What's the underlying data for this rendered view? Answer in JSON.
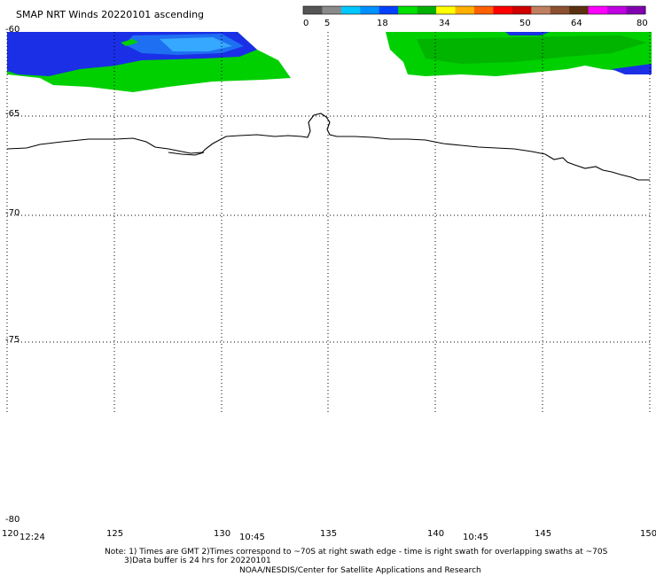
{
  "title": "SMAP NRT Winds 20220101 ascending",
  "colorbar": {
    "ticks": [
      "0",
      "5",
      "18",
      "34",
      "50",
      "64",
      "80"
    ],
    "segments": [
      "#555555",
      "#8a8a8a",
      "#00c8ff",
      "#0090ff",
      "#0040ff",
      "#00e000",
      "#00b000",
      "#ffff00",
      "#ffb000",
      "#ff6000",
      "#ff0000",
      "#d00000",
      "#c08060",
      "#8a5030",
      "#5a3010",
      "#ff00ff",
      "#c000e0",
      "#8000b0"
    ]
  },
  "axes": {
    "lat_labels": [
      "-60",
      "-65",
      "-70",
      "-75",
      "-80"
    ],
    "lon_labels": [
      "120",
      "125",
      "130",
      "135",
      "140",
      "145",
      "150"
    ]
  },
  "times": [
    "12:24",
    "10:45",
    "10:45"
  ],
  "notes": {
    "line1": "Note: 1) Times are GMT 2)Times correspond to ~70S at right swath edge - time is right swath for overlapping swaths at ~70S",
    "line2": "3)Data buffer is 24 hrs for 20220101",
    "line3": "NOAA/NESDIS/Center for Satellite Applications and Research"
  },
  "colors": {
    "blue_dark": "#1a2fe6",
    "blue_mid": "#1e6ff2",
    "blue_light": "#36a8ff",
    "green": "#00d000",
    "green_dark": "#00b400",
    "coast": "#000000",
    "grid": "#000000"
  }
}
